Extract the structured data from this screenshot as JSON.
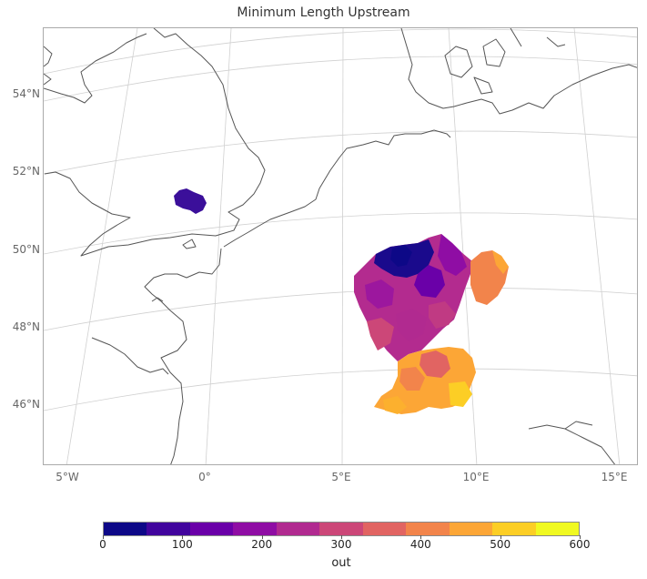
{
  "title": "Minimum Length Upstream",
  "map": {
    "lat_labels": [
      "54°N",
      "52°N",
      "50°N",
      "48°N",
      "46°N"
    ],
    "lon_labels": [
      "5°W",
      "0°",
      "5°E",
      "10°E",
      "15°E"
    ]
  },
  "colorbar": {
    "label": "out",
    "ticks": [
      "0",
      "100",
      "200",
      "300",
      "400",
      "500",
      "600"
    ],
    "range": [
      0,
      600
    ],
    "colors": [
      "#0d0887",
      "#41049d",
      "#6a00a8",
      "#8f0da4",
      "#b12a90",
      "#cc4778",
      "#e16462",
      "#f2844b",
      "#fca636",
      "#fcce25",
      "#f0f921"
    ]
  }
}
